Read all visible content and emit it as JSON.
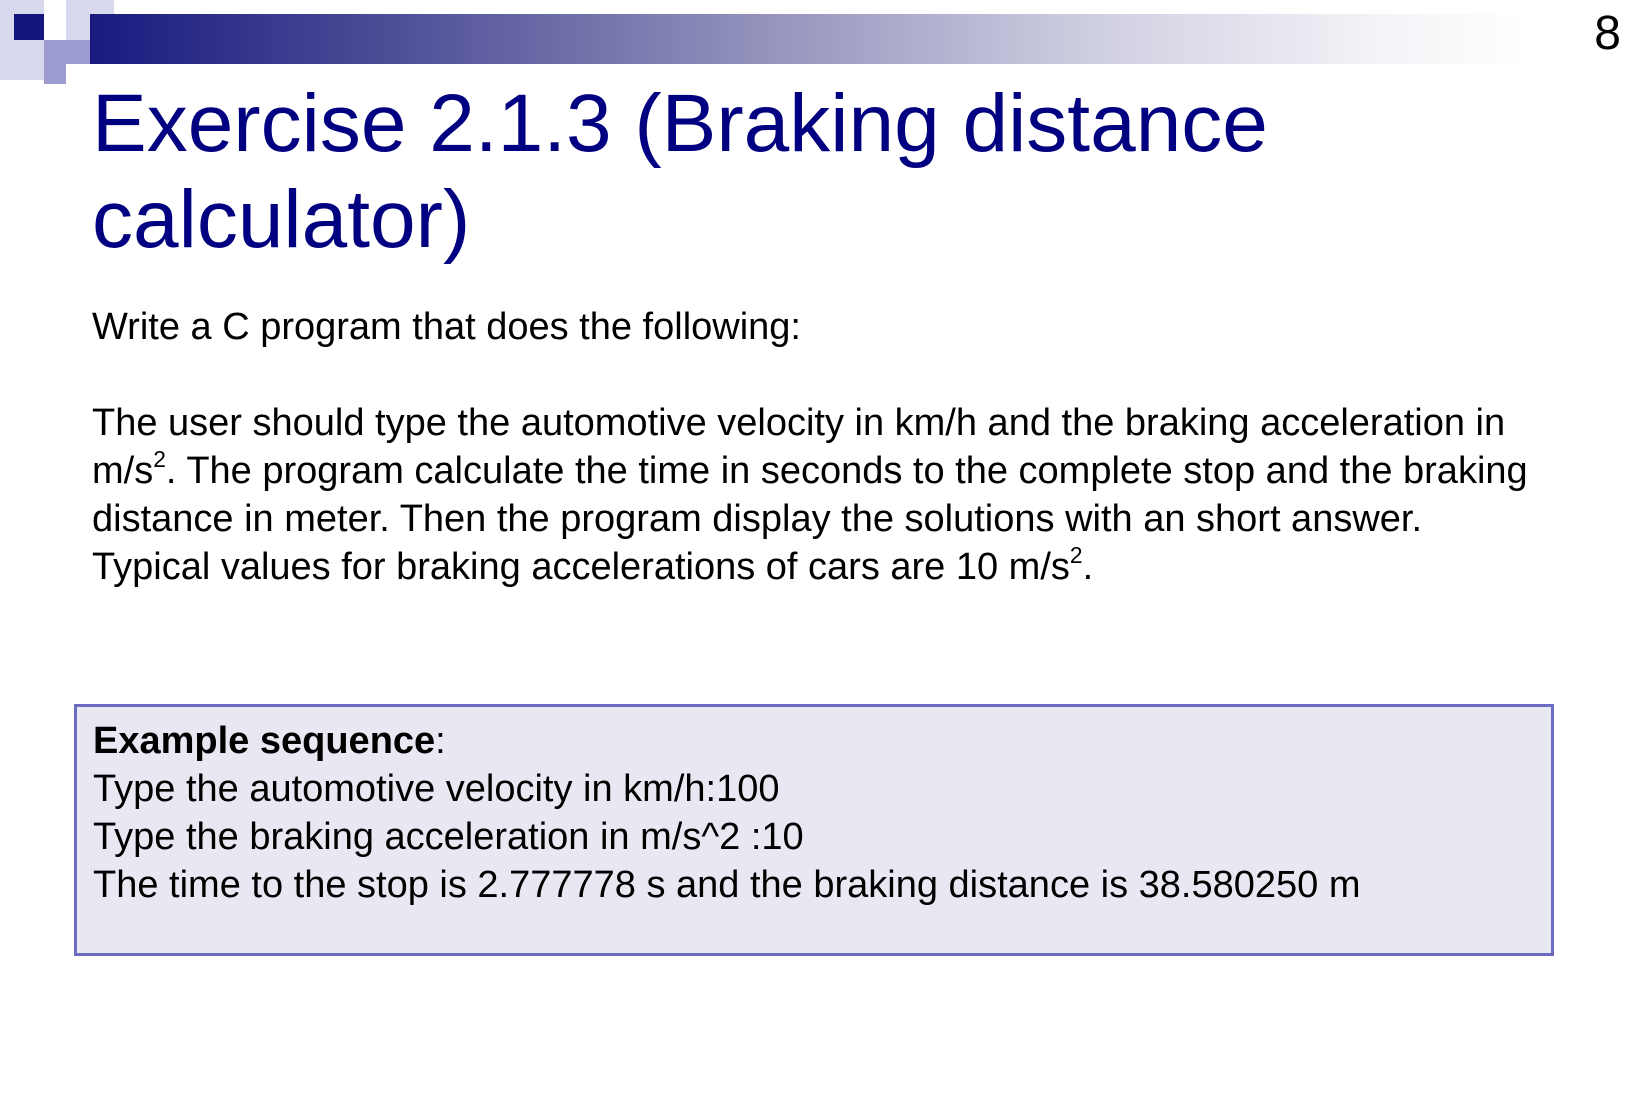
{
  "slide": {
    "number": "8",
    "title": "Exercise 2.1.3 (Braking distance calculator)"
  },
  "body": {
    "intro": "Write a C program that does the following:",
    "paragraph_part1": "The user should type the automotive velocity in km/h and the braking acceleration in m/s",
    "paragraph_sup1": "2",
    "paragraph_part2": ". The program calculate the time in seconds to the complete stop and the braking distance in meter. Then the program display the solutions with an short answer. Typical values for braking accelerations of cars are 10 m/s",
    "paragraph_sup2": "2",
    "paragraph_part3": "."
  },
  "example": {
    "heading": "Example sequence",
    "heading_suffix": ":",
    "lines": [
      "Type the automotive velocity in km/h:100",
      "Type the braking acceleration in m/s^2 :10",
      "The time to the stop is 2.777778 s and the braking distance is 38.580250 m"
    ]
  },
  "colors": {
    "title": "#000080",
    "bar_start": "#1a1a80",
    "box_background": "#e8e8f2",
    "box_border": "#6b6bbf"
  }
}
